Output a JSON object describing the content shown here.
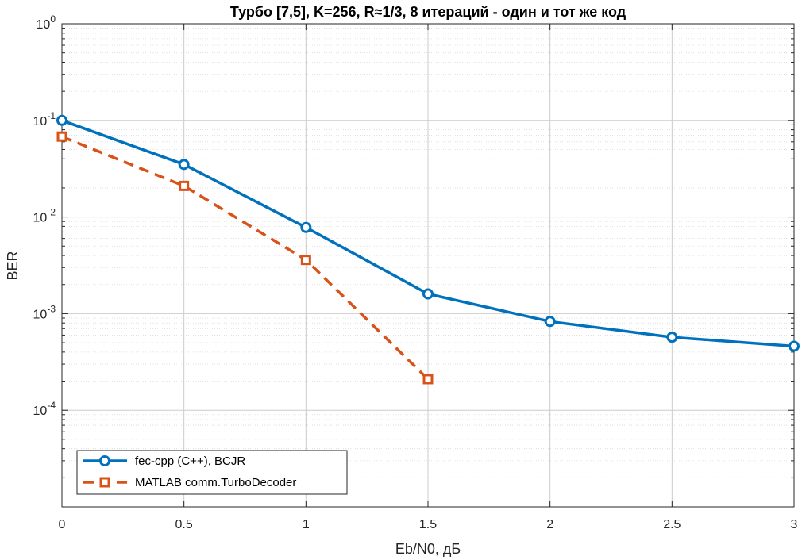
{
  "chart_data": {
    "type": "line",
    "title": "Турбо [7,5], K=256, R≈1/3, 8 итераций - один и тот же код",
    "xlabel": "Eb/N0, дБ",
    "ylabel": "BER",
    "xlim": [
      0,
      3
    ],
    "ylim": [
      1e-05,
      1
    ],
    "yscale": "log",
    "grid": true,
    "legend_position": "bottom-left",
    "x_ticks": [
      {
        "value": 0,
        "label": "0"
      },
      {
        "value": 0.5,
        "label": "0.5"
      },
      {
        "value": 1,
        "label": "1"
      },
      {
        "value": 1.5,
        "label": "1.5"
      },
      {
        "value": 2,
        "label": "2"
      },
      {
        "value": 2.5,
        "label": "2.5"
      },
      {
        "value": 3,
        "label": "3"
      }
    ],
    "y_ticks": [
      {
        "value": 1,
        "base": "10",
        "exp": "0"
      },
      {
        "value": 0.1,
        "base": "10",
        "exp": "-1"
      },
      {
        "value": 0.01,
        "base": "10",
        "exp": "-2"
      },
      {
        "value": 0.001,
        "base": "10",
        "exp": "-3"
      },
      {
        "value": 0.0001,
        "base": "10",
        "exp": "-4"
      }
    ],
    "series": [
      {
        "name": "fec-cpp (C++), BCJR",
        "color": "#0072BD",
        "line_style": "solid",
        "marker": "circle",
        "x": [
          0,
          0.5,
          1,
          1.5,
          2,
          2.5,
          3
        ],
        "y": [
          0.1,
          0.035,
          0.0078,
          0.0016,
          0.00083,
          0.00057,
          0.00046
        ]
      },
      {
        "name": "MATLAB comm.TurboDecoder",
        "color": "#D95319",
        "line_style": "dashed",
        "marker": "square",
        "x": [
          0,
          0.5,
          1,
          1.5
        ],
        "y": [
          0.068,
          0.021,
          0.0036,
          0.00021
        ]
      }
    ]
  }
}
